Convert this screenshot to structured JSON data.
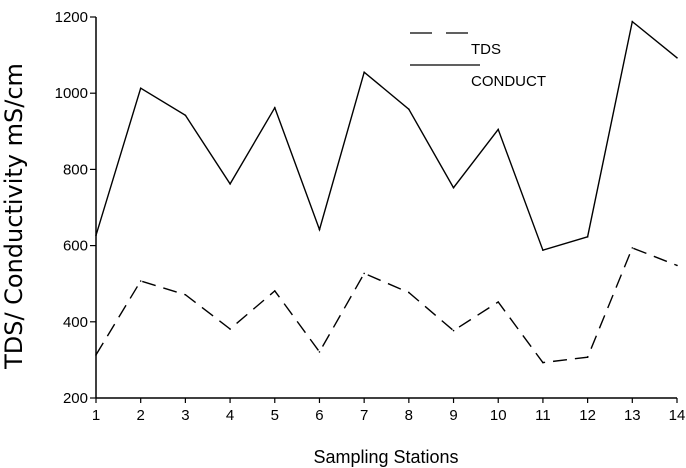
{
  "chart_data": {
    "type": "line",
    "x": [
      1,
      2,
      3,
      4,
      5,
      6,
      7,
      8,
      9,
      10,
      11,
      12,
      13,
      14
    ],
    "series": [
      {
        "name": "TDS",
        "style": "dashed",
        "values": [
          313,
          507,
          471,
          381,
          481,
          321,
          527,
          477,
          377,
          452,
          293,
          307,
          594,
          548
        ]
      },
      {
        "name": "CONDUCT",
        "style": "solid",
        "values": [
          627,
          1013,
          942,
          762,
          962,
          642,
          1055,
          958,
          752,
          905,
          588,
          623,
          1188,
          1093
        ]
      }
    ],
    "xlabel": "Sampling Stations",
    "ylabel": "TDS/ Conductivity  mS/cm",
    "xlim": [
      1,
      14
    ],
    "ylim": [
      200,
      1200
    ],
    "x_ticks": [
      1,
      2,
      3,
      4,
      5,
      6,
      7,
      8,
      9,
      10,
      11,
      12,
      13,
      14
    ],
    "y_ticks": [
      200,
      400,
      600,
      800,
      1000,
      1200
    ],
    "grid": false,
    "legend_position": "top-right",
    "line_color": "#000000"
  }
}
